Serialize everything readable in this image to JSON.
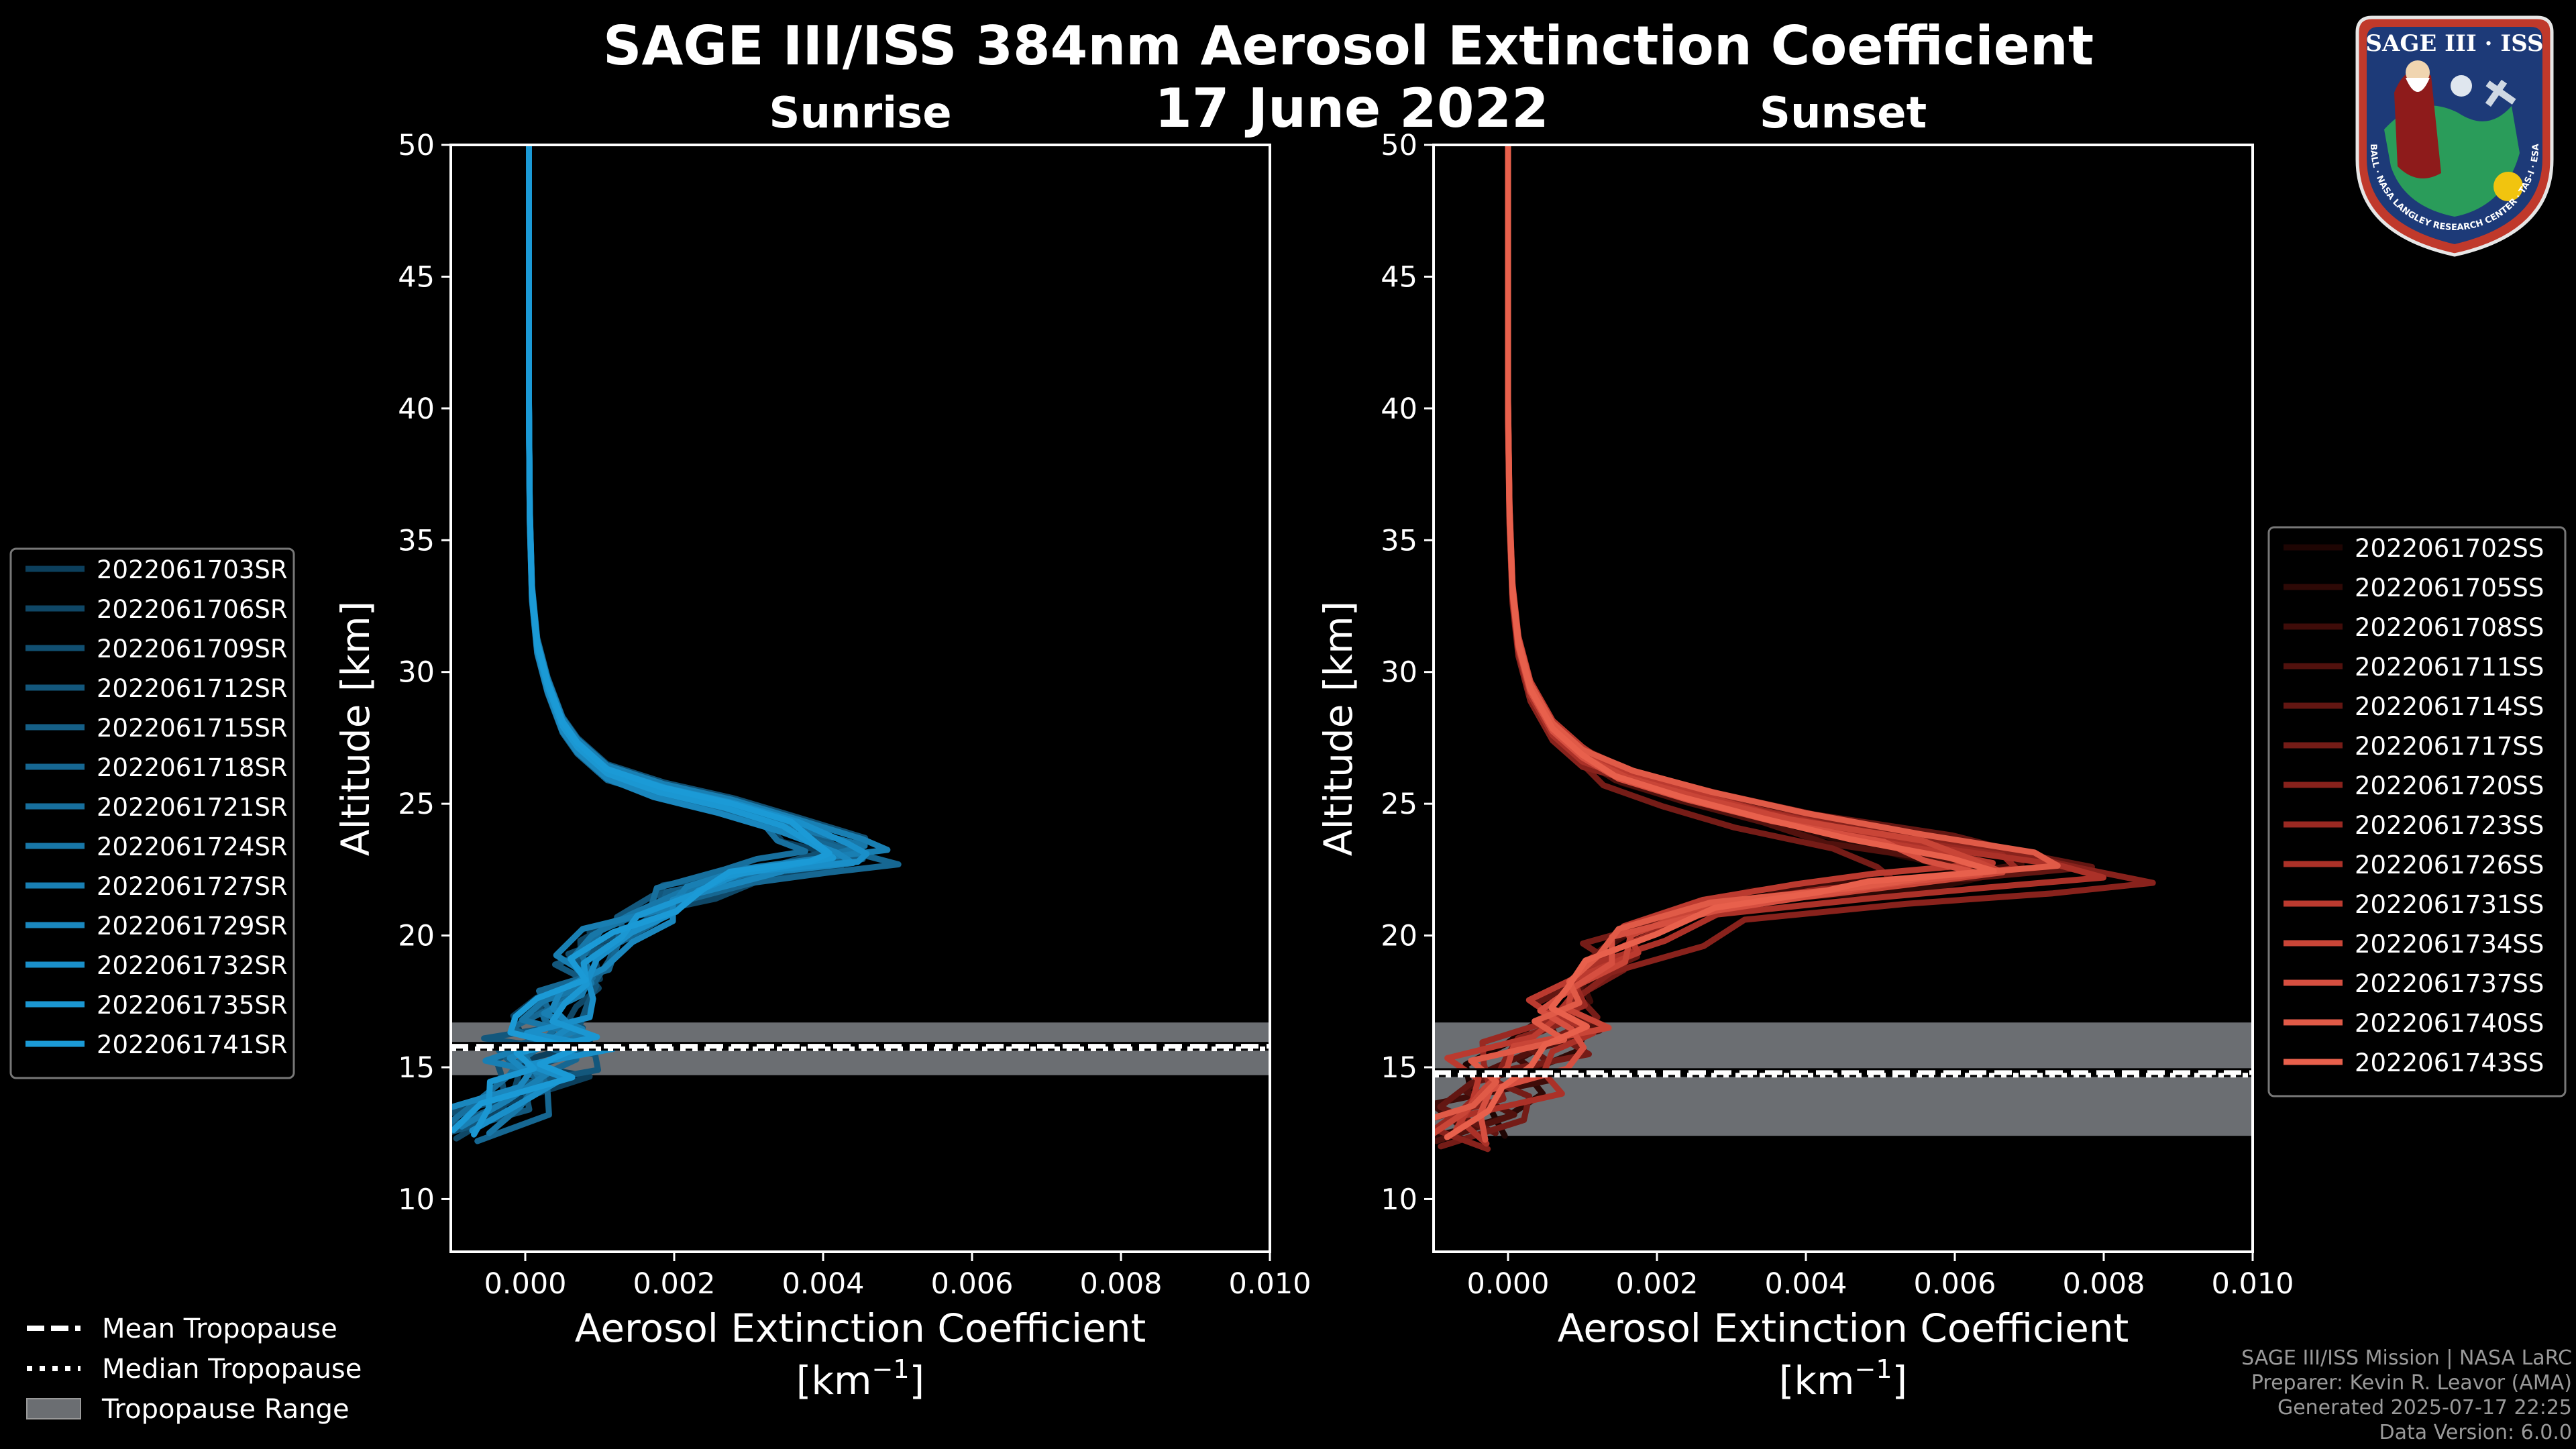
{
  "figure": {
    "title": "SAGE III/ISS 384nm Aerosol Extinction Coefficient",
    "date": "17 June 2022",
    "credits": [
      "SAGE III/ISS Mission | NASA LaRC",
      "Preparer: Kevin R. Leavor (AMA)",
      "Generated 2025-07-17 22:25",
      "Data Version: 6.0.0"
    ],
    "logo": {
      "top_text": "SAGE III · ISS",
      "ring_text": "BALL · NASA LANGLEY RESEARCH CENTER · TAS-I · ESA"
    },
    "legend_tropopause": [
      {
        "label": "Mean Tropopause",
        "style": "dashed"
      },
      {
        "label": "Median Tropopause",
        "style": "dotted"
      },
      {
        "label": "Tropopause Range",
        "style": "box"
      }
    ],
    "colors": {
      "sunrise": "#1b9ad6",
      "sunset": "#e8604c",
      "range_fill": "#6b6e72",
      "background": "#000000"
    }
  },
  "chart_data": [
    {
      "type": "line",
      "title": "Sunrise",
      "xlabel": "Aerosol Extinction Coefficient",
      "xunit": "[km",
      "xunit_sup": "−1",
      "xunit_close": "]",
      "ylabel": "Altitude [km]",
      "xlim": [
        -0.001,
        0.01
      ],
      "ylim": [
        8,
        50
      ],
      "xticks": [
        0.0,
        0.002,
        0.004,
        0.006,
        0.008,
        0.01
      ],
      "xtick_labels": [
        "0.000",
        "0.002",
        "0.004",
        "0.006",
        "0.008",
        "0.010"
      ],
      "yticks": [
        10,
        15,
        20,
        25,
        30,
        35,
        40,
        45,
        50
      ],
      "tropopause": {
        "mean": 15.8,
        "median": 15.7,
        "min": 14.7,
        "max": 16.7
      },
      "profile": [
        [
          5e-05,
          50
        ],
        [
          5e-05,
          45
        ],
        [
          5e-05,
          40
        ],
        [
          6e-05,
          36
        ],
        [
          9e-05,
          33
        ],
        [
          0.00016,
          31
        ],
        [
          0.0003,
          29.5
        ],
        [
          0.0005,
          28
        ],
        [
          0.0007,
          27.2
        ],
        [
          0.0011,
          26.2
        ],
        [
          0.0018,
          25.5
        ],
        [
          0.0027,
          24.9
        ],
        [
          0.0035,
          24.2
        ],
        [
          0.0042,
          23.4
        ],
        [
          0.0044,
          23.0
        ],
        [
          0.0039,
          22.7
        ],
        [
          0.0031,
          22.3
        ],
        [
          0.0022,
          21.6
        ],
        [
          0.0016,
          20.8
        ],
        [
          0.0011,
          20.0
        ],
        [
          0.0008,
          19.0
        ],
        [
          0.0006,
          18.2
        ],
        [
          0.0005,
          17.5
        ],
        [
          0.0004,
          16.8
        ],
        [
          0.0003,
          16.2
        ],
        [
          0.0002,
          15.6
        ],
        [
          0.0001,
          15.0
        ],
        [
          0.0,
          14.5
        ],
        [
          -0.0004,
          13.5
        ],
        [
          -0.0009,
          12.5
        ]
      ],
      "series": [
        {
          "name": "2022061703SR",
          "color": "#0c3f5c",
          "scale": 0.92,
          "dz": 0.15
        },
        {
          "name": "2022061706SR",
          "color": "#0f4766",
          "scale": 0.98,
          "dz": -0.2
        },
        {
          "name": "2022061709SR",
          "color": "#114f71",
          "scale": 1.04,
          "dz": 0.3
        },
        {
          "name": "2022061712SR",
          "color": "#13577c",
          "scale": 0.95,
          "dz": -0.1
        },
        {
          "name": "2022061715SR",
          "color": "#155f87",
          "scale": 1.01,
          "dz": 0.05
        },
        {
          "name": "2022061718SR",
          "color": "#166792",
          "scale": 1.07,
          "dz": -0.3
        },
        {
          "name": "2022061721SR",
          "color": "#176f9d",
          "scale": 0.9,
          "dz": 0.2
        },
        {
          "name": "2022061724SR",
          "color": "#1877a8",
          "scale": 1.0,
          "dz": 0.0
        },
        {
          "name": "2022061727SR",
          "color": "#197fb3",
          "scale": 1.03,
          "dz": 0.25
        },
        {
          "name": "2022061729SR",
          "color": "#1a87be",
          "scale": 0.96,
          "dz": -0.25
        },
        {
          "name": "2022061732SR",
          "color": "#1a8fc9",
          "scale": 1.05,
          "dz": 0.1
        },
        {
          "name": "2022061735SR",
          "color": "#1b97d2",
          "scale": 0.99,
          "dz": -0.05
        },
        {
          "name": "2022061741SR",
          "color": "#1b9ad6",
          "scale": 1.02,
          "dz": 0.12
        }
      ]
    },
    {
      "type": "line",
      "title": "Sunset",
      "xlabel": "Aerosol Extinction Coefficient",
      "xunit": "[km",
      "xunit_sup": "−1",
      "xunit_close": "]",
      "ylabel": "Altitude [km]",
      "xlim": [
        -0.001,
        0.01
      ],
      "ylim": [
        8,
        50
      ],
      "xticks": [
        0.0,
        0.002,
        0.004,
        0.006,
        0.008,
        0.01
      ],
      "xtick_labels": [
        "0.000",
        "0.002",
        "0.004",
        "0.006",
        "0.008",
        "0.010"
      ],
      "yticks": [
        10,
        15,
        20,
        25,
        30,
        35,
        40,
        45,
        50
      ],
      "tropopause": {
        "mean": 14.8,
        "median": 14.7,
        "min": 12.4,
        "max": 16.7
      },
      "profile": [
        [
          0.0,
          50
        ],
        [
          0.0,
          45
        ],
        [
          0.0,
          40
        ],
        [
          2e-05,
          36
        ],
        [
          6e-05,
          33
        ],
        [
          0.00014,
          31
        ],
        [
          0.0003,
          29.3
        ],
        [
          0.0006,
          27.8
        ],
        [
          0.001,
          26.8
        ],
        [
          0.0016,
          26.0
        ],
        [
          0.0026,
          25.2
        ],
        [
          0.0038,
          24.4
        ],
        [
          0.0052,
          23.6
        ],
        [
          0.0064,
          22.9
        ],
        [
          0.007,
          22.4
        ],
        [
          0.0058,
          22.0
        ],
        [
          0.0042,
          21.6
        ],
        [
          0.0028,
          21.0
        ],
        [
          0.0018,
          20.0
        ],
        [
          0.0013,
          19.0
        ],
        [
          0.001,
          18.0
        ],
        [
          0.0007,
          17.2
        ],
        [
          0.0005,
          16.5
        ],
        [
          0.0003,
          15.8
        ],
        [
          0.0001,
          15.0
        ],
        [
          -0.0001,
          14.2
        ],
        [
          -0.0004,
          13.3
        ],
        [
          -0.0008,
          12.3
        ]
      ],
      "series": [
        {
          "name": "2022061702SS",
          "color": "#1e0503",
          "scale": 0.85,
          "dz": 0.1
        },
        {
          "name": "2022061705SS",
          "color": "#2e0906",
          "scale": 0.95,
          "dz": -0.2
        },
        {
          "name": "2022061708SS",
          "color": "#3f0c09",
          "scale": 1.0,
          "dz": 0.3
        },
        {
          "name": "2022061711SS",
          "color": "#51110d",
          "scale": 0.9,
          "dz": -0.1
        },
        {
          "name": "2022061714SS",
          "color": "#631612",
          "scale": 1.08,
          "dz": 0.2
        },
        {
          "name": "2022061717SS",
          "color": "#751c17",
          "scale": 0.8,
          "dz": -0.3
        },
        {
          "name": "2022061720SS",
          "color": "#88221c",
          "scale": 1.27,
          "dz": -0.4
        },
        {
          "name": "2022061723SS",
          "color": "#9a2922",
          "scale": 0.98,
          "dz": 0.15
        },
        {
          "name": "2022061726SS",
          "color": "#ab3128",
          "scale": 1.12,
          "dz": -0.2
        },
        {
          "name": "2022061731SS",
          "color": "#bb3a2f",
          "scale": 0.88,
          "dz": 0.35
        },
        {
          "name": "2022061734SS",
          "color": "#c94537",
          "scale": 1.0,
          "dz": 0.0
        },
        {
          "name": "2022061737SS",
          "color": "#d64f40",
          "scale": 0.93,
          "dz": -0.05
        },
        {
          "name": "2022061740SS",
          "color": "#e05a47",
          "scale": 1.05,
          "dz": 0.25
        },
        {
          "name": "2022061743SS",
          "color": "#e8604c",
          "scale": 0.9,
          "dz": 0.05
        }
      ]
    }
  ]
}
